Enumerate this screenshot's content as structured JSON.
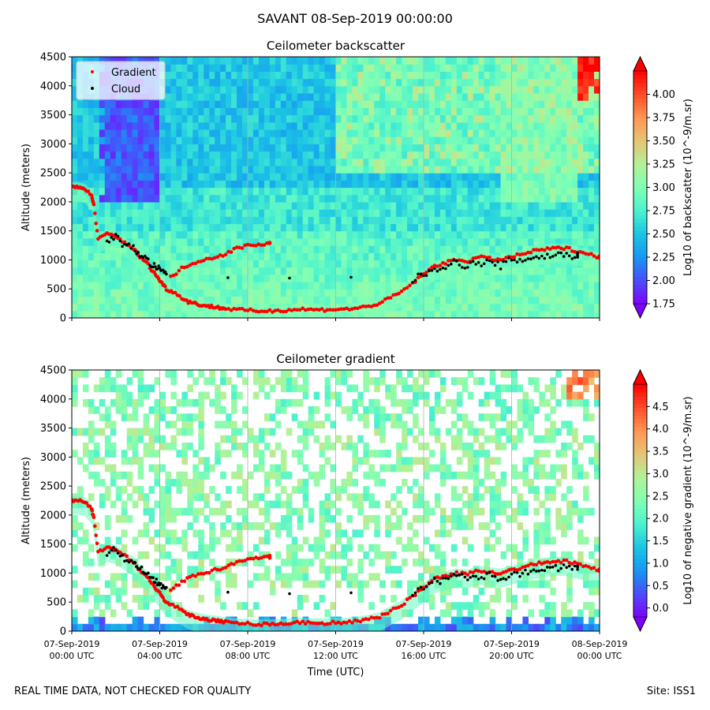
{
  "figure": {
    "suptitle": "SAVANT 08-Sep-2019 00:00:00",
    "footer_left": "REAL TIME DATA, NOT CHECKED FOR QUALITY",
    "footer_right": "Site: ISS1"
  },
  "colors": {
    "gradient_marker": "#ff0000",
    "cloud_marker": "#000000",
    "colormap": [
      "#8000ff",
      "#4a4dfb",
      "#1996f3",
      "#1ac4e4",
      "#4cf2ce",
      "#80ffb4",
      "#b2f296",
      "#e6c476",
      "#ff9653",
      "#ff4d2a",
      "#ff0000"
    ]
  },
  "chart_data": [
    {
      "type": "heatmap",
      "title": "Ceilometer backscatter",
      "xlabel": "",
      "ylabel": "Altitude (meters)",
      "xlim": [
        0,
        24
      ],
      "ylim": [
        0,
        4500
      ],
      "yticks": [
        0,
        500,
        1000,
        1500,
        2000,
        2500,
        3000,
        3500,
        4000,
        4500
      ],
      "xticks": [
        0,
        4,
        8,
        12,
        16,
        20,
        24
      ],
      "colorbar": {
        "label": "Log10 of backscatter (10^-9/m.sr)",
        "range": [
          1.75,
          4.25
        ],
        "ticks": [
          "1.75",
          "2.00",
          "2.25",
          "2.50",
          "2.75",
          "3.00",
          "3.25",
          "3.50",
          "3.75",
          "4.00"
        ]
      },
      "legend": {
        "position": "top-left",
        "entries": [
          "Gradient",
          "Cloud"
        ]
      },
      "series": [
        {
          "name": "Gradient",
          "x": [
            0.0,
            0.3,
            0.6,
            0.9,
            1.0,
            1.2,
            1.6,
            2.0,
            2.4,
            2.8,
            3.1,
            3.4,
            3.7,
            3.9,
            4.1,
            4.3,
            4.6,
            5.0,
            5.3,
            5.6,
            5.9,
            6.2,
            6.5,
            6.8,
            7.0,
            7.5,
            8.0,
            8.5,
            9.0,
            9.5,
            10.0,
            10.5,
            11.0,
            11.5,
            12.0,
            12.5,
            13.0,
            13.5,
            14.0,
            14.5,
            15.0,
            15.5,
            16.0,
            16.5,
            17.0,
            17.5,
            18.0,
            18.5,
            19.0,
            19.5,
            20.0,
            20.5,
            21.0,
            21.5,
            22.0,
            22.5,
            23.0,
            23.5,
            24.0
          ],
          "y": [
            2250,
            2260,
            2230,
            2100,
            1950,
            1350,
            1450,
            1400,
            1300,
            1200,
            1050,
            950,
            800,
            700,
            600,
            500,
            450,
            350,
            280,
            250,
            220,
            200,
            190,
            170,
            160,
            140,
            130,
            120,
            120,
            130,
            140,
            150,
            140,
            140,
            150,
            150,
            170,
            200,
            250,
            350,
            450,
            600,
            750,
            900,
            950,
            1000,
            980,
            1050,
            1020,
            1000,
            1050,
            1100,
            1150,
            1180,
            1200,
            1200,
            1150,
            1100,
            1050
          ]
        },
        {
          "name": "Gradient (upper layer)",
          "x": [
            4.5,
            5.0,
            5.5,
            6.0,
            6.5,
            7.0,
            7.5,
            8.0,
            8.5,
            9.0
          ],
          "y": [
            700,
            850,
            950,
            1000,
            1050,
            1100,
            1200,
            1250,
            1270,
            1280
          ]
        },
        {
          "name": "Cloud",
          "x": [
            1.6,
            2.0,
            2.4,
            2.8,
            3.1,
            3.4,
            3.7,
            3.9,
            4.1,
            4.3,
            15.5,
            16.0,
            16.5,
            17.0,
            17.5,
            18.0,
            18.5,
            19.0,
            19.5,
            20.0,
            20.5,
            21.0,
            21.5,
            22.0,
            22.5,
            23.0
          ],
          "y": [
            1350,
            1400,
            1250,
            1200,
            1100,
            1000,
            900,
            850,
            800,
            750,
            650,
            750,
            850,
            900,
            950,
            900,
            950,
            950,
            900,
            1000,
            1000,
            1050,
            1050,
            1100,
            1080,
            1070
          ]
        }
      ]
    },
    {
      "type": "heatmap",
      "title": "Ceilometer gradient",
      "xlabel": "Time (UTC)",
      "ylabel": "Altitude (meters)",
      "xlim": [
        0,
        24
      ],
      "ylim": [
        0,
        4500
      ],
      "yticks": [
        0,
        500,
        1000,
        1500,
        2000,
        2500,
        3000,
        3500,
        4000,
        4500
      ],
      "xticks": [
        0,
        4,
        8,
        12,
        16,
        20,
        24
      ],
      "xtick_labels": [
        {
          "date": "07-Sep-2019",
          "time": "00:00 UTC"
        },
        {
          "date": "07-Sep-2019",
          "time": "04:00 UTC"
        },
        {
          "date": "07-Sep-2019",
          "time": "08:00 UTC"
        },
        {
          "date": "07-Sep-2019",
          "time": "12:00 UTC"
        },
        {
          "date": "07-Sep-2019",
          "time": "16:00 UTC"
        },
        {
          "date": "07-Sep-2019",
          "time": "20:00 UTC"
        },
        {
          "date": "08-Sep-2019",
          "time": "00:00 UTC"
        }
      ],
      "colorbar": {
        "label": "Log10 of negative gradient (10^-9/m.sr)",
        "range": [
          -0.2,
          5.0
        ],
        "ticks": [
          "0.0",
          "0.5",
          "1.0",
          "1.5",
          "2.0",
          "2.5",
          "3.0",
          "3.5",
          "4.0",
          "4.5"
        ]
      },
      "series": [
        {
          "name": "Gradient",
          "x": [
            0.0,
            0.3,
            0.6,
            0.9,
            1.0,
            1.2,
            1.6,
            2.0,
            2.4,
            2.8,
            3.1,
            3.4,
            3.7,
            3.9,
            4.1,
            4.3,
            4.6,
            5.0,
            5.3,
            5.6,
            5.9,
            6.2,
            6.5,
            6.8,
            7.0,
            7.5,
            8.0,
            8.5,
            9.0,
            9.5,
            10.0,
            10.5,
            11.0,
            11.5,
            12.0,
            12.5,
            13.0,
            13.5,
            14.0,
            14.5,
            15.0,
            15.5,
            16.0,
            16.5,
            17.0,
            17.5,
            18.0,
            18.5,
            19.0,
            19.5,
            20.0,
            20.5,
            21.0,
            21.5,
            22.0,
            22.5,
            23.0,
            23.5,
            24.0
          ],
          "y": [
            2250,
            2260,
            2230,
            2100,
            1950,
            1350,
            1450,
            1400,
            1300,
            1200,
            1050,
            950,
            800,
            700,
            600,
            500,
            450,
            350,
            280,
            250,
            220,
            200,
            190,
            170,
            160,
            140,
            130,
            120,
            120,
            130,
            140,
            150,
            140,
            140,
            150,
            150,
            170,
            200,
            250,
            350,
            450,
            600,
            750,
            900,
            950,
            1000,
            980,
            1050,
            1020,
            1000,
            1050,
            1100,
            1150,
            1180,
            1200,
            1200,
            1150,
            1100,
            1050
          ]
        },
        {
          "name": "Gradient (upper layer)",
          "x": [
            4.5,
            5.0,
            5.5,
            6.0,
            6.5,
            7.0,
            7.5,
            8.0,
            8.5,
            9.0
          ],
          "y": [
            700,
            850,
            950,
            1000,
            1050,
            1100,
            1200,
            1250,
            1270,
            1280
          ]
        },
        {
          "name": "Cloud",
          "x": [
            1.6,
            2.0,
            2.4,
            2.8,
            3.1,
            3.4,
            3.7,
            3.9,
            4.1,
            4.3,
            15.5,
            16.0,
            16.5,
            17.0,
            17.5,
            18.0,
            18.5,
            19.0,
            19.5,
            20.0,
            20.5,
            21.0,
            21.5,
            22.0,
            22.5,
            23.0
          ],
          "y": [
            1350,
            1400,
            1250,
            1200,
            1100,
            1000,
            900,
            850,
            800,
            750,
            650,
            750,
            850,
            900,
            950,
            900,
            950,
            950,
            900,
            1000,
            1000,
            1050,
            1050,
            1100,
            1080,
            1070
          ]
        }
      ]
    }
  ]
}
